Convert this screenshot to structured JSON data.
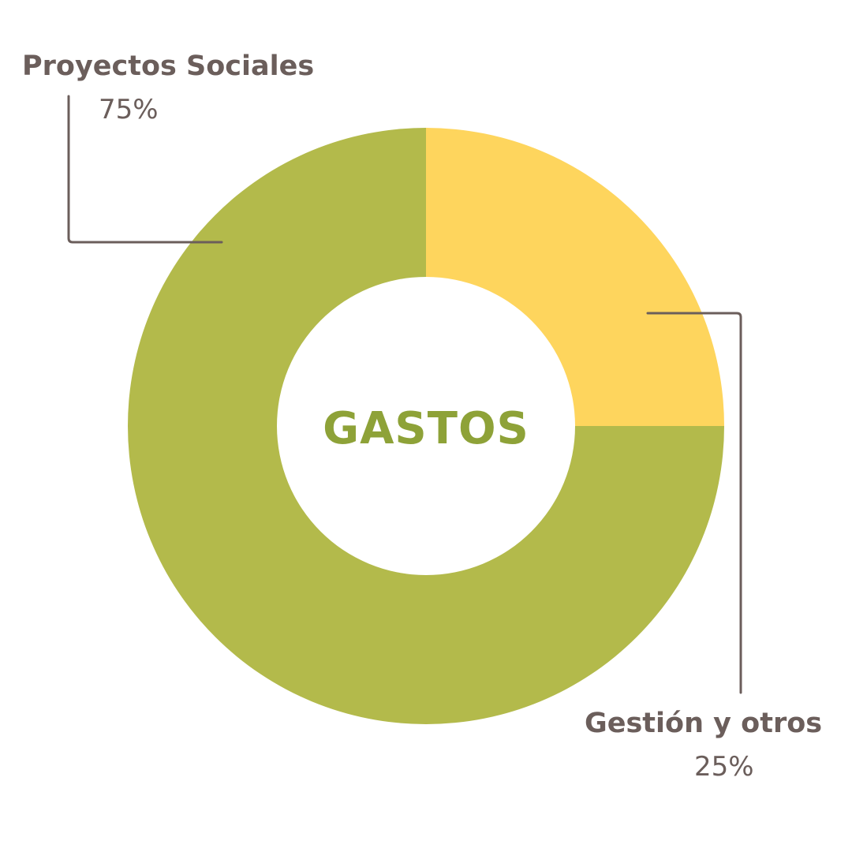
{
  "chart_data": {
    "type": "pie",
    "variant": "donut",
    "center_label": "GASTOS",
    "slices": [
      {
        "label": "Gestión y otros",
        "value": 25,
        "display": "25%",
        "color": "#fed55d"
      },
      {
        "label": "Proyectos Sociales",
        "value": 75,
        "display": "75%",
        "color": "#b3ba4b"
      }
    ],
    "start_angle": "12 o'clock",
    "direction": "clockwise",
    "colors": {
      "center_text": "#8ea238",
      "label_text": "#6b5e5b",
      "leader_lines": "#6b5e5b"
    }
  }
}
